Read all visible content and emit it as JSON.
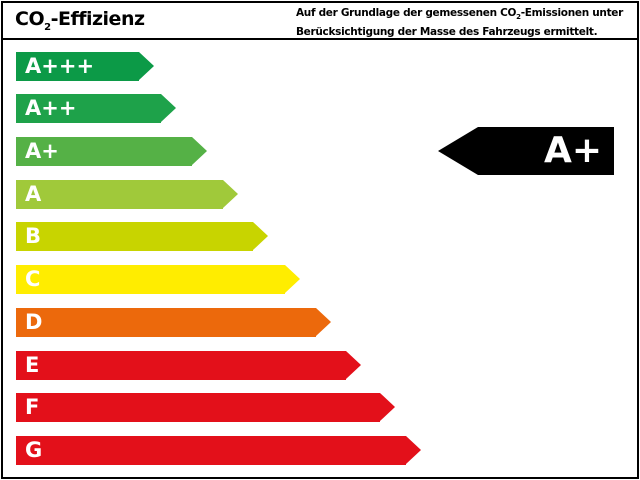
{
  "header": {
    "title_prefix": "CO",
    "title_sub": "2",
    "title_suffix": "-Effizienz",
    "note_line1_prefix": "Auf der Grundlage der gemessenen CO",
    "note_line1_sub": "2",
    "note_line1_suffix": "-Emissionen unter",
    "note_line2": "Berücksichtigung der Masse des Fahrzeugs ermittelt."
  },
  "classes": [
    {
      "label": "A+++",
      "color": "#0c9a47"
    },
    {
      "label": "A++",
      "color": "#1ea24a"
    },
    {
      "label": "A+",
      "color": "#55b146"
    },
    {
      "label": "A",
      "color": "#a0c93a"
    },
    {
      "label": "B",
      "color": "#c8d400"
    },
    {
      "label": "C",
      "color": "#ffed00"
    },
    {
      "label": "D",
      "color": "#ec690c"
    },
    {
      "label": "E",
      "color": "#e3101a"
    },
    {
      "label": "F",
      "color": "#e3101a"
    },
    {
      "label": "G",
      "color": "#e3101a"
    }
  ],
  "selected": {
    "label": "A+",
    "color": "#000000"
  }
}
